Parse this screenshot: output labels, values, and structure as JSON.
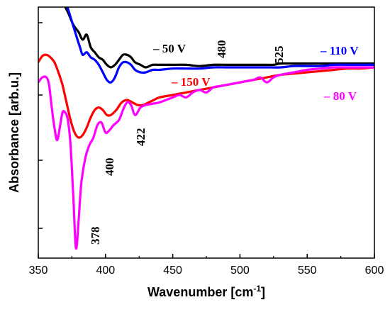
{
  "chart_data": {
    "type": "line",
    "xlabel": "Wavenumber [cm",
    "xlabel_sup": "-1",
    "xlabel_close": "]",
    "ylabel": "Absorbance [arb.u.]",
    "xlim": [
      350,
      600
    ],
    "ylim": [
      0,
      100
    ],
    "x_ticks": [
      350,
      400,
      450,
      500,
      550,
      600
    ],
    "grid": false,
    "legend": "none",
    "series": [
      {
        "name": "– 50 V",
        "color": "#000000",
        "x": [
          368,
          372,
          376,
          380,
          383,
          386,
          389,
          392,
          395,
          398,
          401,
          404,
          407,
          410,
          413,
          416,
          419,
          422,
          426,
          430,
          435,
          440,
          450,
          460,
          470,
          480,
          490,
          500,
          510,
          520,
          525,
          530,
          540,
          550,
          560,
          570,
          580,
          590,
          600
        ],
        "y": [
          102,
          98,
          93,
          90,
          87,
          89,
          84,
          82,
          80,
          79,
          77,
          76,
          77,
          79,
          81,
          81,
          80,
          78,
          77,
          76,
          77,
          77,
          77,
          77,
          76.5,
          77,
          77,
          77,
          77,
          77,
          77,
          77.5,
          77.5,
          77.5,
          77.5,
          77.5,
          77.5,
          77.5,
          77.5
        ]
      },
      {
        "name": "– 110 V",
        "color": "#0000ff",
        "x": [
          370,
          374,
          378,
          381,
          383,
          386,
          389,
          392,
          395,
          398,
          401,
          404,
          407,
          410,
          413,
          416,
          419,
          422,
          426,
          430,
          435,
          440,
          450,
          460,
          470,
          480,
          490,
          500,
          510,
          520,
          530,
          540,
          550,
          560,
          570,
          580,
          590,
          600
        ],
        "y": [
          103,
          96,
          89,
          84,
          81,
          82,
          80,
          79,
          77,
          74,
          71,
          70,
          72,
          76,
          78,
          78,
          77,
          75,
          74,
          74,
          75,
          75,
          75.5,
          75.5,
          75.5,
          76,
          76,
          76,
          76,
          76,
          76,
          76.5,
          76.5,
          76.5,
          77,
          77,
          77,
          77
        ]
      },
      {
        "name": "– 150 V",
        "color": "#ff0000",
        "x": [
          350,
          353,
          356,
          359,
          362,
          365,
          368,
          371,
          374,
          377,
          380,
          383,
          386,
          389,
          392,
          395,
          398,
          401,
          404,
          408,
          412,
          416,
          420,
          424,
          428,
          432,
          436,
          440,
          450,
          460,
          470,
          480,
          490,
          500,
          510,
          520,
          530,
          540,
          550,
          560,
          570,
          580,
          590,
          600
        ],
        "y": [
          78,
          80.5,
          81,
          80,
          78,
          74,
          69,
          62,
          55,
          50,
          48,
          49,
          52,
          56,
          59,
          60,
          59,
          57,
          57,
          59,
          62,
          63,
          62,
          61,
          61,
          62,
          63,
          64,
          65,
          66,
          67,
          68,
          69,
          70,
          71,
          72,
          73,
          73.5,
          74,
          74.5,
          75,
          75.5,
          75.5,
          76
        ]
      },
      {
        "name": "– 80 V",
        "color": "#ff00ff",
        "x": [
          350,
          353,
          356,
          358,
          360,
          362,
          364,
          366,
          368,
          370,
          372,
          374,
          376,
          378,
          380,
          382,
          385,
          388,
          391,
          394,
          397,
          400,
          403,
          406,
          410,
          413,
          416,
          419,
          422,
          426,
          430,
          435,
          440,
          445,
          450,
          455,
          460,
          465,
          470,
          475,
          480,
          485,
          490,
          500,
          510,
          515,
          520,
          525,
          530,
          540,
          550,
          560,
          570,
          580,
          590,
          600
        ],
        "y": [
          70,
          72,
          72,
          69,
          60,
          52,
          47,
          52,
          58,
          58,
          55,
          45,
          25,
          4,
          15,
          30,
          40,
          45,
          48,
          53,
          54,
          50,
          51,
          53,
          55,
          59,
          62,
          61,
          57,
          60,
          61,
          61.5,
          62,
          63,
          64,
          65,
          64,
          66,
          67,
          66,
          68,
          68.5,
          69,
          70,
          71,
          72,
          70,
          72,
          73,
          74,
          75,
          75.5,
          76,
          76,
          76,
          76
        ]
      }
    ],
    "annotations": [
      {
        "text": "– 50 V",
        "color": "#000000",
        "rotate": false
      },
      {
        "text": "480",
        "color": "#000000",
        "rotate": true
      },
      {
        "text": "525",
        "color": "#000000",
        "rotate": true
      },
      {
        "text": "– 110 V",
        "color": "#0000ff",
        "rotate": false
      },
      {
        "text": "– 150 V",
        "color": "#ff0000",
        "rotate": false
      },
      {
        "text": "– 80 V",
        "color": "#ff00ff",
        "rotate": false
      },
      {
        "text": "422",
        "color": "#000000",
        "rotate": true
      },
      {
        "text": "400",
        "color": "#000000",
        "rotate": true
      },
      {
        "text": "378",
        "color": "#000000",
        "rotate": true
      }
    ]
  }
}
